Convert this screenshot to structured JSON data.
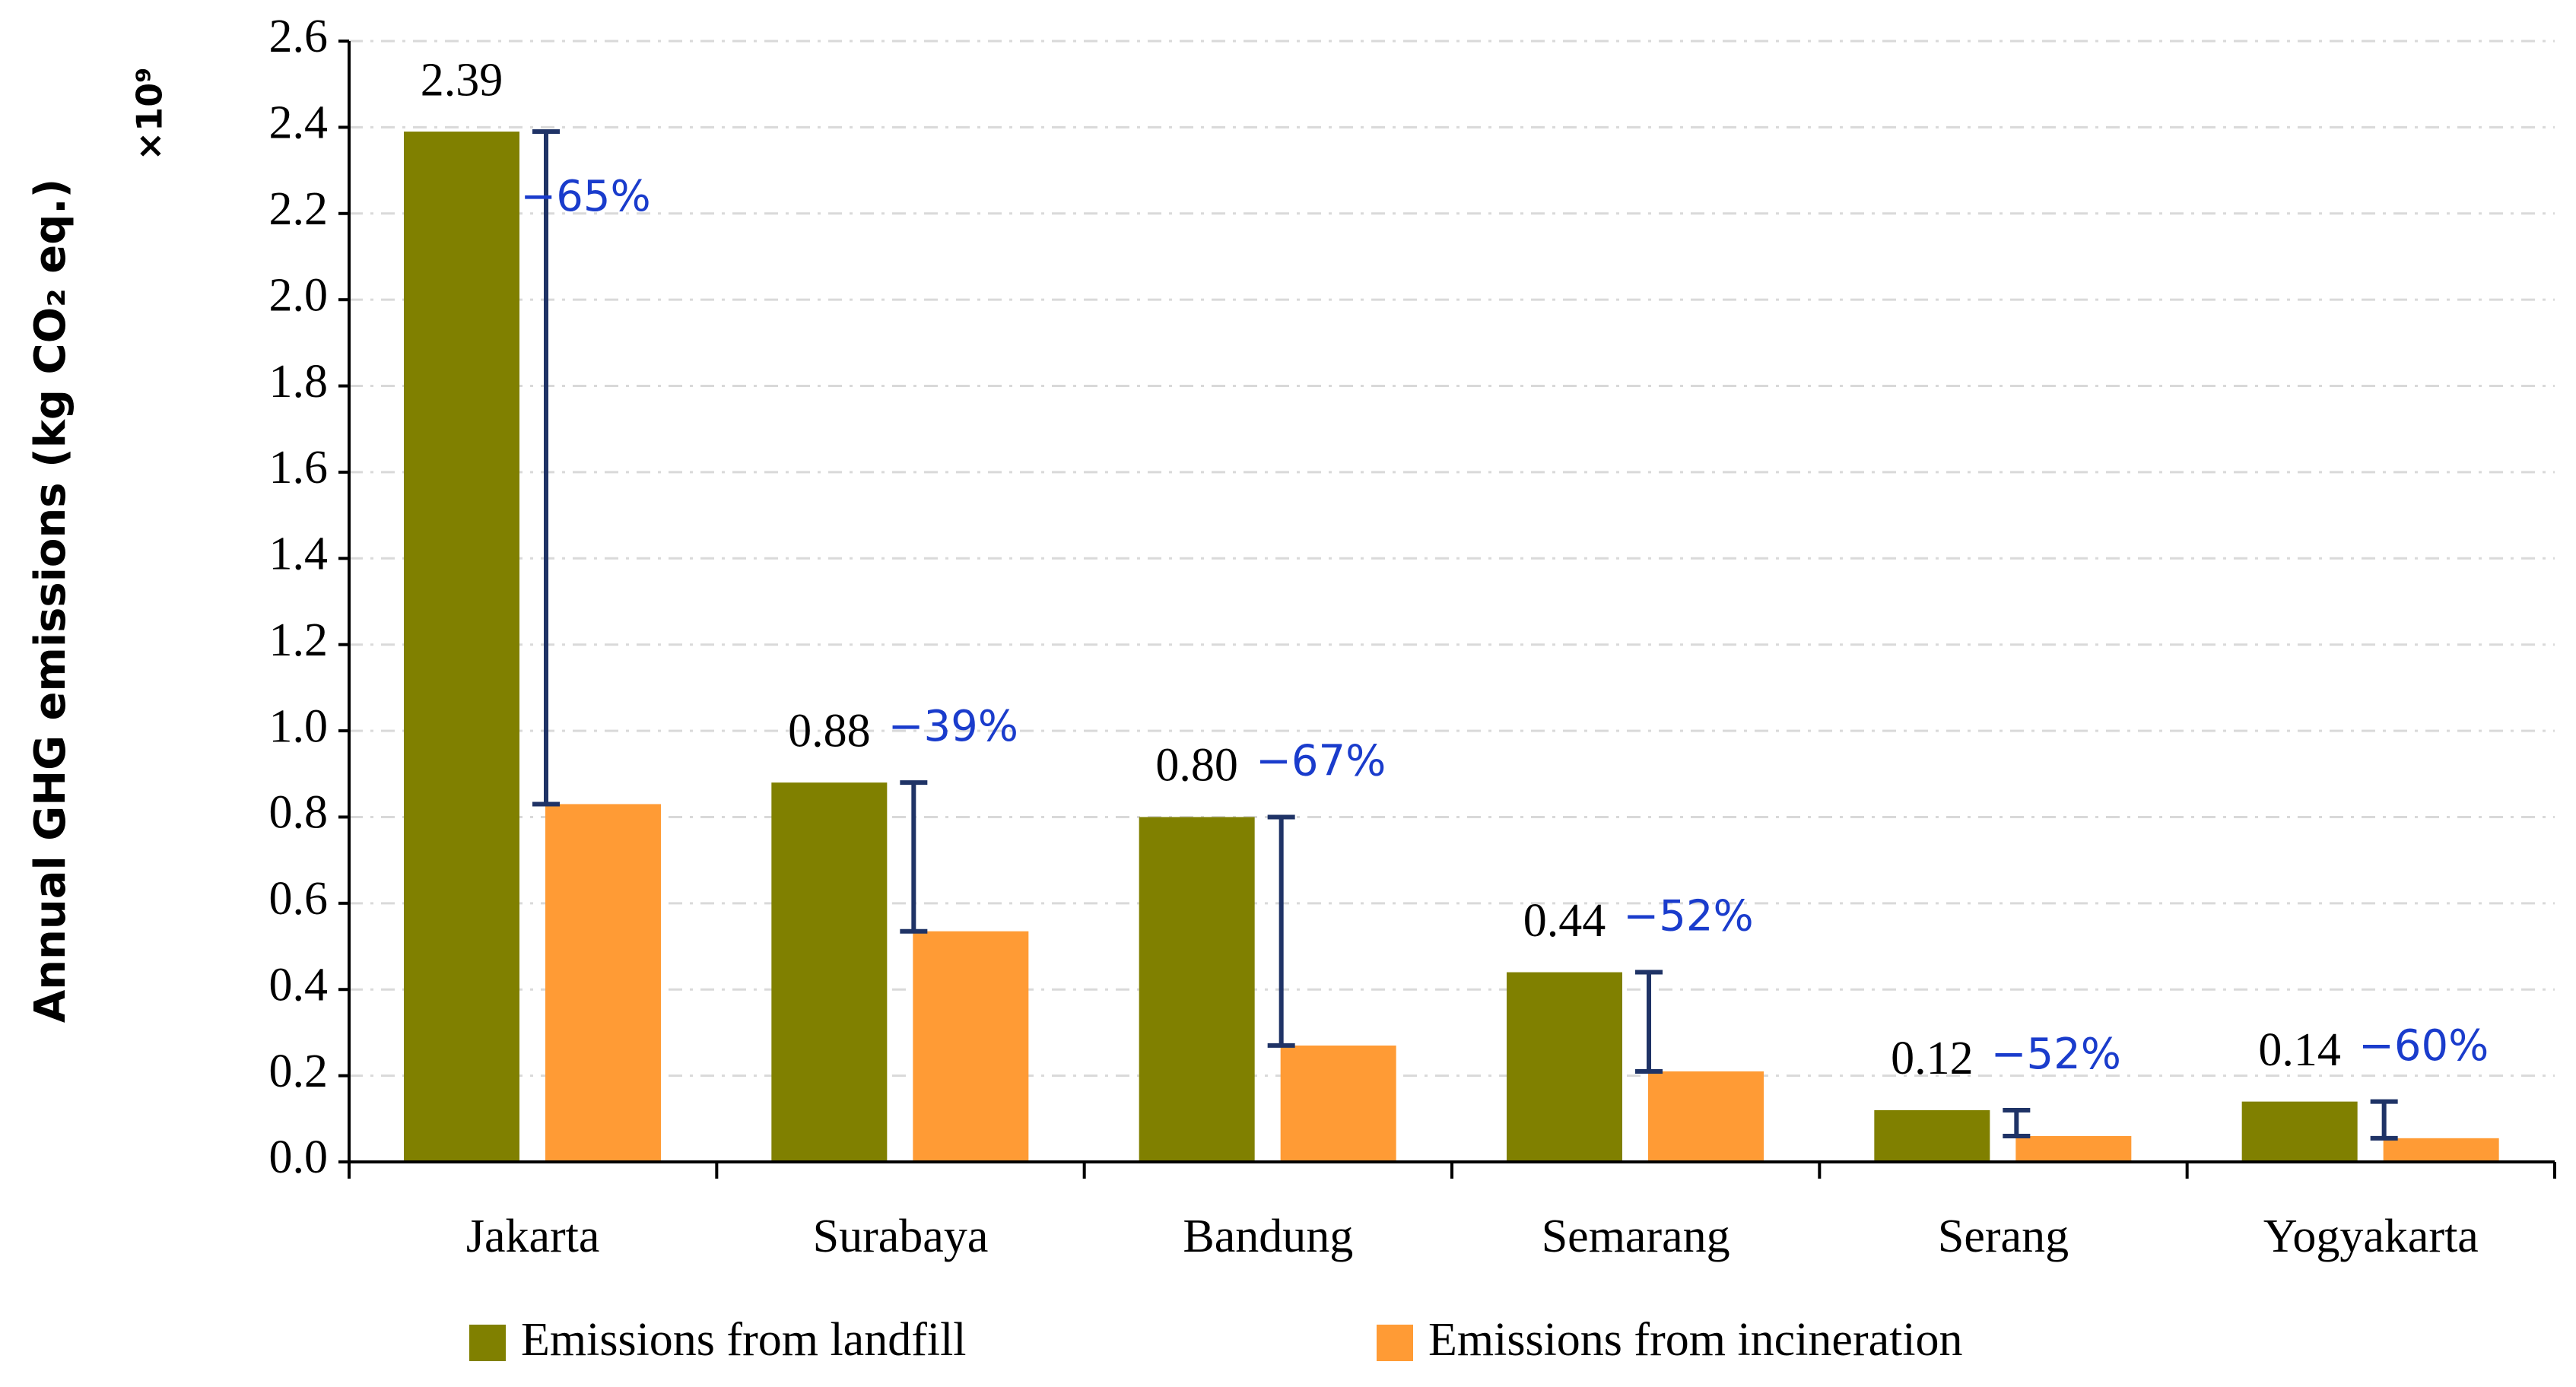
{
  "chart_data": {
    "type": "bar",
    "y_label": "Annual GHG emissions (kg CO₂ eq.)",
    "y_multiplier": "×10⁹",
    "categories": [
      "Jakarta",
      "Surabaya",
      "Bandung",
      "Semarang",
      "Serang",
      "Yogyakarta"
    ],
    "series": [
      {
        "name": "Emissions from landfill",
        "color": "#808000",
        "values": [
          2.39,
          0.88,
          0.8,
          0.44,
          0.12,
          0.14
        ],
        "value_labels": [
          "2.39",
          "0.88",
          "0.80",
          "0.44",
          "0.12",
          "0.14"
        ]
      },
      {
        "name": "Emissions from incineration",
        "color": "#ff9b35",
        "values": [
          0.83,
          0.535,
          0.27,
          0.21,
          0.06,
          0.055
        ]
      }
    ],
    "annotations": [
      "−65%",
      "−39%",
      "−67%",
      "−52%",
      "−52%",
      "−60%"
    ],
    "annotation_color": "#1a3ccc",
    "error_bar_color": "#1f3366",
    "ylim": [
      0,
      2.6
    ],
    "yticks": [
      {
        "value": 0,
        "label": "0.0"
      },
      0.2,
      0.4,
      0.6,
      0.8,
      {
        "value": 1,
        "label": "1.0"
      },
      1.2,
      1.4,
      1.6,
      1.8,
      {
        "value": 2,
        "label": "2.0"
      },
      2.2,
      2.4,
      2.6
    ],
    "grid": true
  }
}
